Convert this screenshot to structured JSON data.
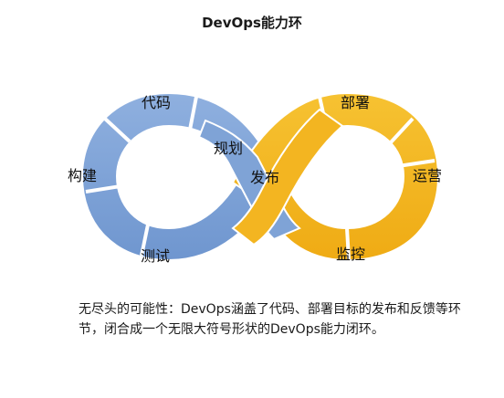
{
  "title": "DevOps能力环",
  "labels": {
    "code": "代码",
    "plan": "规划",
    "build": "构建",
    "test": "测试",
    "release": "发布",
    "deploy": "部署",
    "operate": "运营",
    "monitor": "监控"
  },
  "caption": "无尽头的可能性：DevOps涵盖了代码、部署目标的发布和反馈等环节，闭合成一个无限大符号形状的DevOps能力闭环。",
  "colors": {
    "left_loop": "#7fa3d6",
    "right_loop": "#f3b521",
    "outline": "#ffffff"
  }
}
